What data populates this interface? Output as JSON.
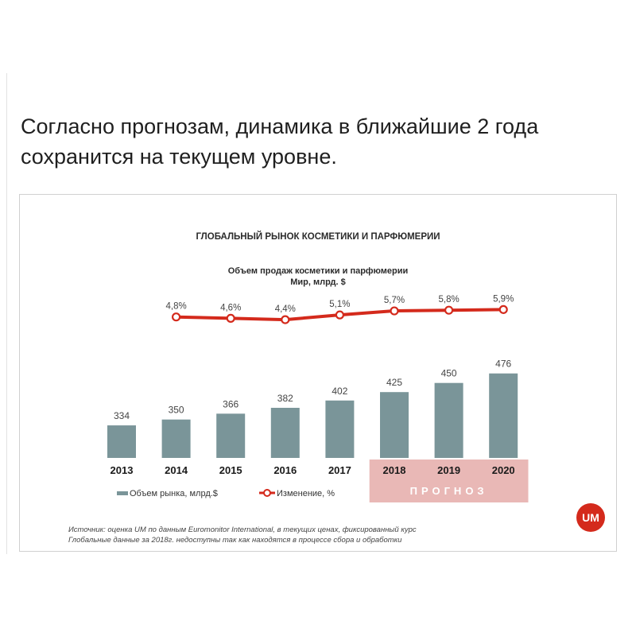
{
  "headline": "Согласно прогнозам, динамика в ближайшие 2 года сохранится на текущем уровне.",
  "colors": {
    "bar": "#7a9599",
    "line": "#d42a1c",
    "forecast_band": "#e9b8b6",
    "logo": "#d42a1c"
  },
  "chart_data": {
    "type": "bar",
    "title": "ГЛОБАЛЬНЫЙ РЫНОК КОСМЕТИКИ И ПАРФЮМЕРИИ",
    "subtitle_line1": "Объем продаж косметики и парфюмерии",
    "subtitle_line2": "Мир, млрд. $",
    "categories": [
      "2013",
      "2014",
      "2015",
      "2016",
      "2017",
      "2018",
      "2019",
      "2020"
    ],
    "series": [
      {
        "name": "Объем рынка, млрд.$",
        "type": "bar",
        "values": [
          334,
          350,
          366,
          382,
          402,
          425,
          450,
          476
        ],
        "labels": [
          "334",
          "350",
          "366",
          "382",
          "402",
          "425",
          "450",
          "476"
        ]
      },
      {
        "name": "Изменение, %",
        "type": "line",
        "values": [
          null,
          4.8,
          4.6,
          4.4,
          5.1,
          5.7,
          5.8,
          5.9
        ],
        "labels": [
          "",
          "4,8%",
          "4,6%",
          "4,4%",
          "5,1%",
          "5,7%",
          "5,8%",
          "5,9%"
        ]
      }
    ],
    "forecast_categories": [
      "2018",
      "2019",
      "2020"
    ],
    "forecast_label": "ПРОГНОЗ",
    "legend_position": "bottom-left",
    "grid": false
  },
  "source": {
    "line1": "Источник: оценка UM по данным Euromonitor International, в текущих ценах, фиксированный курс",
    "line2": "Глобальные данные за 2018г. недоступны так как находятся в процессе сбора и обработки"
  },
  "logo": {
    "text": "UM",
    "icon": "um-logo"
  }
}
